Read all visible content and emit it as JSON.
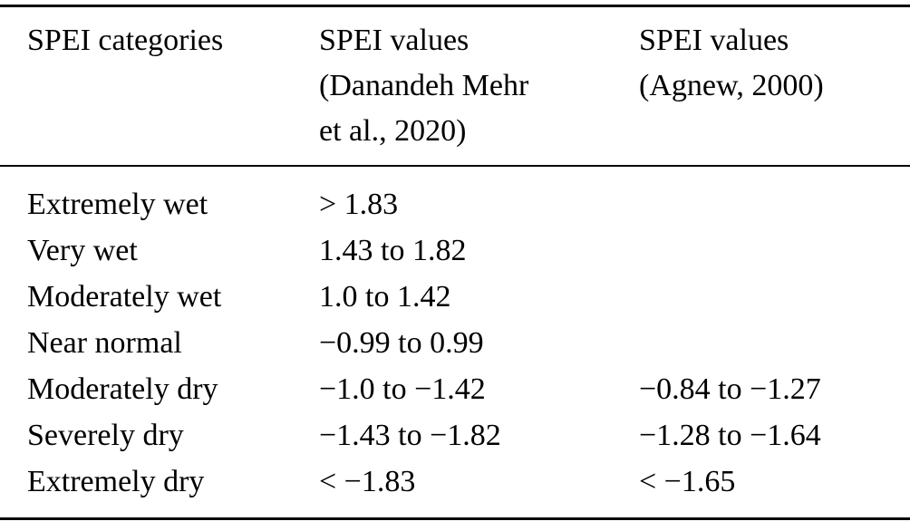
{
  "table": {
    "headers": [
      "SPEI categories",
      "SPEI values\n(Danandeh Mehr\net al., 2020)",
      "SPEI values\n(Agnew, 2000)"
    ],
    "rows": [
      {
        "category": "Extremely wet",
        "danandeh_mehr": "> 1.83",
        "agnew": ""
      },
      {
        "category": "Very wet",
        "danandeh_mehr": "1.43 to 1.82",
        "agnew": ""
      },
      {
        "category": "Moderately wet",
        "danandeh_mehr": "1.0 to 1.42",
        "agnew": ""
      },
      {
        "category": "Near normal",
        "danandeh_mehr": "−0.99 to 0.99",
        "agnew": ""
      },
      {
        "category": "Moderately dry",
        "danandeh_mehr": "−1.0 to −1.42",
        "agnew": "−0.84 to −1.27"
      },
      {
        "category": "Severely dry",
        "danandeh_mehr": "−1.43 to −1.82",
        "agnew": "−1.28 to −1.64"
      },
      {
        "category": "Extremely dry",
        "danandeh_mehr": "< −1.83",
        "agnew": "< −1.65"
      }
    ],
    "colors": {
      "text": "#000000",
      "background": "#ffffff",
      "rule": "#000000"
    }
  }
}
